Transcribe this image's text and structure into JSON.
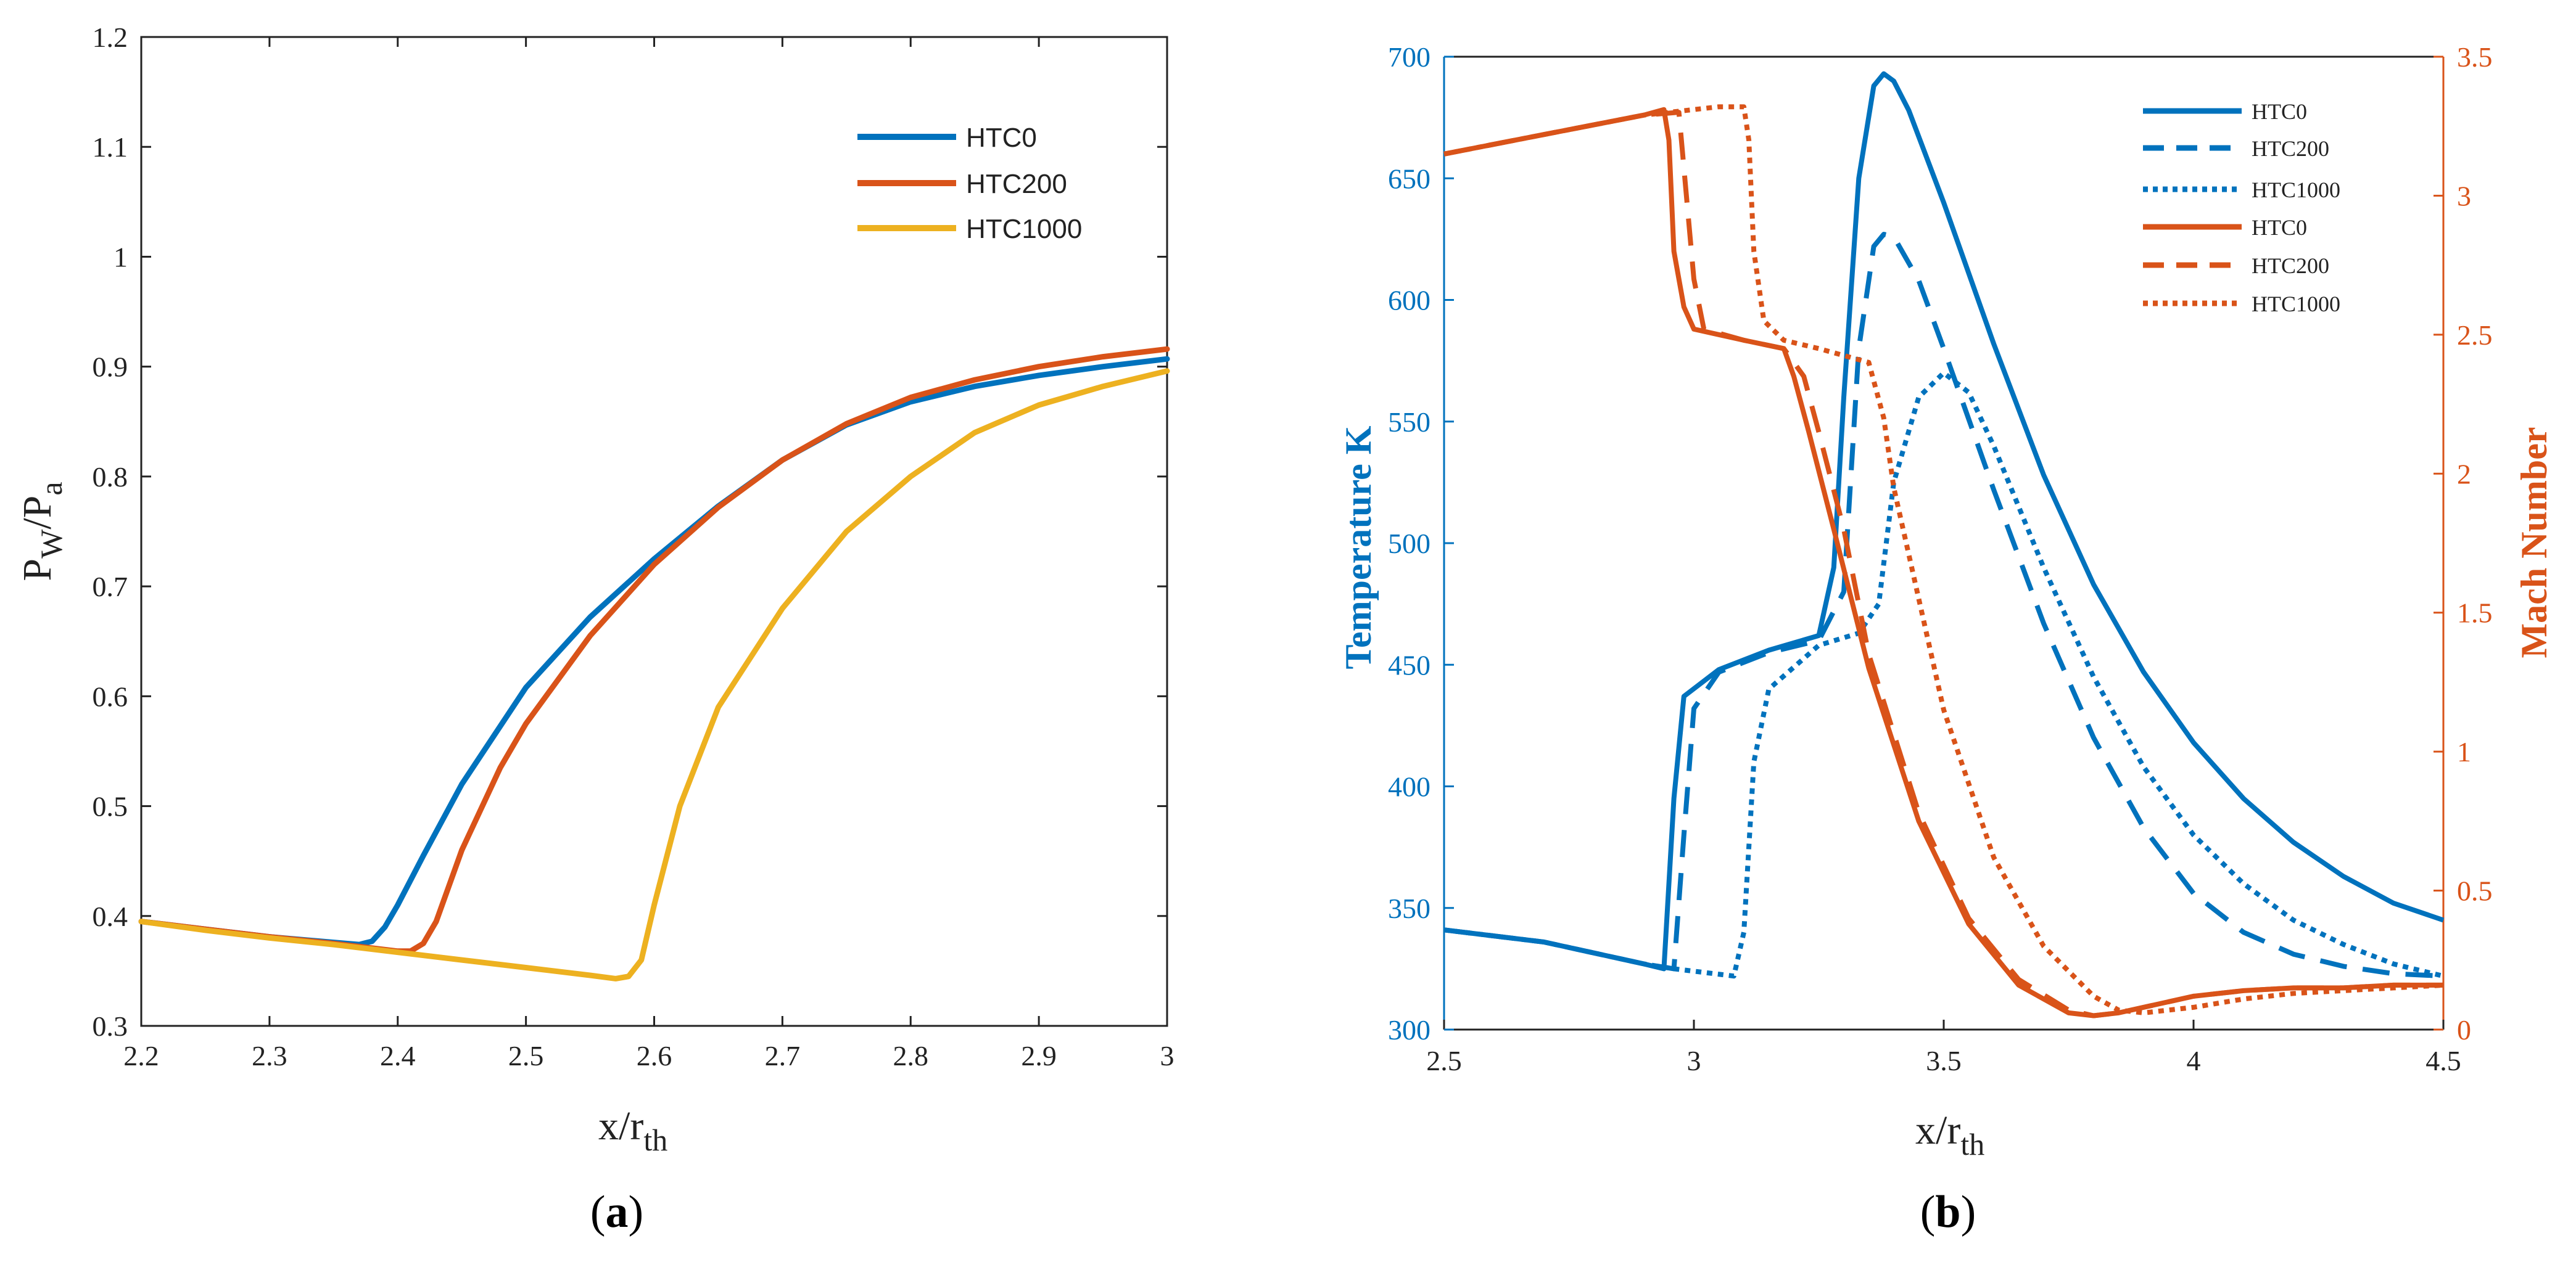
{
  "colors": {
    "blue": "#0072BD",
    "orange": "#D95319",
    "yellow": "#EDB120",
    "axis": "#222222"
  },
  "chart_data": [
    {
      "panel_label": {
        "open": "(",
        "letter": "a",
        "close": ")"
      },
      "type": "line",
      "title": "",
      "xlabel": "x/r",
      "xlabel_sub": "th",
      "ylabel": "P",
      "ylabel_sub1": "W",
      "ylabel_mid": "/P",
      "ylabel_sub2": "a",
      "xlim": [
        2.2,
        3.0
      ],
      "ylim": [
        0.3,
        1.2
      ],
      "xticks": [
        "2.2",
        "2.3",
        "2.4",
        "2.5",
        "2.6",
        "2.7",
        "2.8",
        "2.9",
        "3"
      ],
      "yticks": [
        "0.3",
        "0.4",
        "0.5",
        "0.6",
        "0.7",
        "0.8",
        "0.9",
        "1",
        "1.1",
        "1.2"
      ],
      "legend": [
        "HTC0",
        "HTC200",
        "HTC1000"
      ],
      "series": [
        {
          "name": "HTC0",
          "color": "#0072BD",
          "x": [
            2.2,
            2.25,
            2.3,
            2.35,
            2.37,
            2.38,
            2.39,
            2.4,
            2.42,
            2.45,
            2.5,
            2.55,
            2.6,
            2.65,
            2.7,
            2.75,
            2.8,
            2.85,
            2.9,
            2.95,
            3.0
          ],
          "y": [
            0.395,
            0.388,
            0.381,
            0.376,
            0.374,
            0.377,
            0.39,
            0.41,
            0.455,
            0.52,
            0.608,
            0.672,
            0.725,
            0.773,
            0.815,
            0.847,
            0.868,
            0.882,
            0.892,
            0.9,
            0.907
          ]
        },
        {
          "name": "HTC200",
          "color": "#D95319",
          "x": [
            2.2,
            2.25,
            2.3,
            2.35,
            2.4,
            2.41,
            2.42,
            2.43,
            2.45,
            2.48,
            2.5,
            2.55,
            2.6,
            2.65,
            2.7,
            2.75,
            2.8,
            2.85,
            2.9,
            2.95,
            3.0
          ],
          "y": [
            0.395,
            0.388,
            0.381,
            0.375,
            0.368,
            0.368,
            0.375,
            0.395,
            0.46,
            0.535,
            0.575,
            0.655,
            0.72,
            0.772,
            0.815,
            0.848,
            0.872,
            0.888,
            0.9,
            0.909,
            0.916
          ]
        },
        {
          "name": "HTC1000",
          "color": "#EDB120",
          "x": [
            2.2,
            2.25,
            2.3,
            2.35,
            2.4,
            2.45,
            2.5,
            2.55,
            2.57,
            2.58,
            2.59,
            2.6,
            2.62,
            2.65,
            2.7,
            2.75,
            2.8,
            2.85,
            2.9,
            2.95,
            3.0
          ],
          "y": [
            0.395,
            0.387,
            0.38,
            0.374,
            0.367,
            0.36,
            0.353,
            0.346,
            0.343,
            0.345,
            0.36,
            0.41,
            0.5,
            0.59,
            0.68,
            0.75,
            0.8,
            0.84,
            0.865,
            0.882,
            0.896
          ]
        }
      ]
    },
    {
      "panel_label": {
        "open": "(",
        "letter": "b",
        "close": ")"
      },
      "type": "line",
      "title": "",
      "xlabel": "x/r",
      "xlabel_sub": "th",
      "ylabel_left": "Temperature K",
      "ylabel_right": "Mach Number",
      "xlim": [
        2.5,
        4.5
      ],
      "ylim_left": [
        300,
        700
      ],
      "ylim_right": [
        0,
        3.5
      ],
      "xticks": [
        "2.5",
        "3",
        "3.5",
        "4",
        "4.5"
      ],
      "yticks_left": [
        "300",
        "350",
        "400",
        "450",
        "500",
        "550",
        "600",
        "650",
        "700"
      ],
      "yticks_right": [
        "0",
        "0.5",
        "1",
        "1.5",
        "2",
        "2.5",
        "3",
        "3.5"
      ],
      "legend": [
        "HTC0",
        "HTC200",
        "HTC1000",
        "HTC0",
        "HTC200",
        "HTC1000"
      ],
      "series": [
        {
          "name": "HTC0",
          "axis": "left",
          "color": "#0072BD",
          "style": "solid",
          "x": [
            2.5,
            2.7,
            2.9,
            2.94,
            2.96,
            2.98,
            3.05,
            3.15,
            3.25,
            3.28,
            3.3,
            3.33,
            3.36,
            3.38,
            3.4,
            3.43,
            3.5,
            3.6,
            3.7,
            3.8,
            3.9,
            4.0,
            4.1,
            4.2,
            4.3,
            4.4,
            4.5
          ],
          "y": [
            341,
            336,
            327,
            325,
            395,
            437,
            448,
            456,
            462,
            490,
            560,
            650,
            688,
            693,
            690,
            678,
            640,
            582,
            528,
            483,
            447,
            418,
            395,
            377,
            363,
            352,
            345
          ]
        },
        {
          "name": "HTC200",
          "axis": "left",
          "color": "#0072BD",
          "style": "dashed",
          "x": [
            2.5,
            2.7,
            2.9,
            2.96,
            2.98,
            3.0,
            3.05,
            3.15,
            3.25,
            3.3,
            3.33,
            3.36,
            3.38,
            3.4,
            3.45,
            3.5,
            3.6,
            3.7,
            3.8,
            3.9,
            4.0,
            4.1,
            4.2,
            4.3,
            4.4,
            4.5
          ],
          "y": [
            341,
            336,
            327,
            325,
            380,
            432,
            447,
            455,
            460,
            480,
            580,
            622,
            627,
            626,
            608,
            580,
            522,
            467,
            420,
            383,
            356,
            340,
            331,
            326,
            323,
            322
          ]
        },
        {
          "name": "HTC1000",
          "axis": "left",
          "color": "#0072BD",
          "style": "dotted",
          "x": [
            2.5,
            2.7,
            2.9,
            2.96,
            3.0,
            3.08,
            3.1,
            3.12,
            3.15,
            3.25,
            3.33,
            3.37,
            3.4,
            3.45,
            3.5,
            3.55,
            3.6,
            3.7,
            3.8,
            3.9,
            4.0,
            4.1,
            4.2,
            4.3,
            4.4,
            4.5
          ],
          "y": [
            341,
            336,
            327,
            325,
            324,
            322,
            340,
            410,
            440,
            458,
            463,
            475,
            525,
            560,
            570,
            562,
            540,
            490,
            445,
            408,
            380,
            360,
            345,
            335,
            327,
            322
          ]
        },
        {
          "name": "HTC0",
          "axis": "right",
          "color": "#D95319",
          "style": "solid",
          "x": [
            2.5,
            2.7,
            2.9,
            2.94,
            2.95,
            2.96,
            2.98,
            3.0,
            3.1,
            3.18,
            3.2,
            3.23,
            3.28,
            3.35,
            3.45,
            3.55,
            3.65,
            3.75,
            3.8,
            3.85,
            3.9,
            4.0,
            4.1,
            4.2,
            4.3,
            4.4,
            4.5
          ],
          "y": [
            3.15,
            3.22,
            3.29,
            3.31,
            3.2,
            2.8,
            2.6,
            2.52,
            2.48,
            2.45,
            2.35,
            2.15,
            1.8,
            1.3,
            0.75,
            0.38,
            0.16,
            0.06,
            0.05,
            0.06,
            0.08,
            0.12,
            0.14,
            0.15,
            0.15,
            0.16,
            0.16
          ]
        },
        {
          "name": "HTC200",
          "axis": "right",
          "color": "#D95319",
          "style": "dashed",
          "x": [
            2.5,
            2.7,
            2.9,
            2.97,
            2.98,
            3.0,
            3.02,
            3.1,
            3.18,
            3.22,
            3.25,
            3.3,
            3.35,
            3.45,
            3.55,
            3.65,
            3.75,
            3.8,
            3.85,
            3.9,
            4.0,
            4.1,
            4.2,
            4.3,
            4.4,
            4.5
          ],
          "y": [
            3.15,
            3.22,
            3.29,
            3.3,
            3.1,
            2.7,
            2.52,
            2.48,
            2.45,
            2.35,
            2.15,
            1.8,
            1.35,
            0.78,
            0.4,
            0.18,
            0.07,
            0.05,
            0.06,
            0.08,
            0.12,
            0.14,
            0.15,
            0.15,
            0.16,
            0.16
          ]
        },
        {
          "name": "HTC1000",
          "axis": "right",
          "color": "#D95319",
          "style": "dotted",
          "x": [
            2.5,
            2.7,
            2.9,
            3.05,
            3.1,
            3.11,
            3.12,
            3.14,
            3.18,
            3.25,
            3.35,
            3.38,
            3.4,
            3.45,
            3.5,
            3.6,
            3.7,
            3.8,
            3.85,
            3.9,
            4.0,
            4.1,
            4.2,
            4.3,
            4.4,
            4.5
          ],
          "y": [
            3.15,
            3.22,
            3.29,
            3.32,
            3.32,
            3.2,
            2.8,
            2.55,
            2.48,
            2.45,
            2.4,
            2.2,
            1.95,
            1.55,
            1.15,
            0.62,
            0.3,
            0.12,
            0.07,
            0.06,
            0.08,
            0.11,
            0.13,
            0.14,
            0.15,
            0.16
          ]
        }
      ]
    }
  ]
}
